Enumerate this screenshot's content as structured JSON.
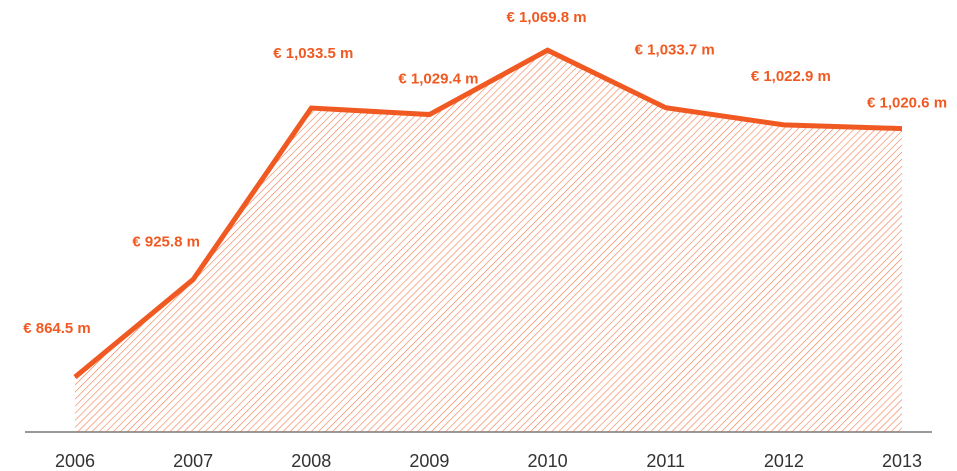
{
  "chart_data": {
    "type": "area",
    "categories": [
      "2006",
      "2007",
      "2008",
      "2009",
      "2010",
      "2011",
      "2012",
      "2013"
    ],
    "values": [
      864.5,
      925.8,
      1033.5,
      1029.4,
      1069.8,
      1033.7,
      1022.9,
      1020.6
    ],
    "value_labels": [
      "€ 864.5 m",
      "€ 925.8 m",
      "€ 1,033.5 m",
      "€ 1,029.4 m",
      "€ 1,069.8 m",
      "€ 1,033.7 m",
      "€ 1,022.9 m",
      "€ 1,020.6 m"
    ],
    "color": "#f05a22",
    "ylim": [
      830,
      1080
    ]
  }
}
